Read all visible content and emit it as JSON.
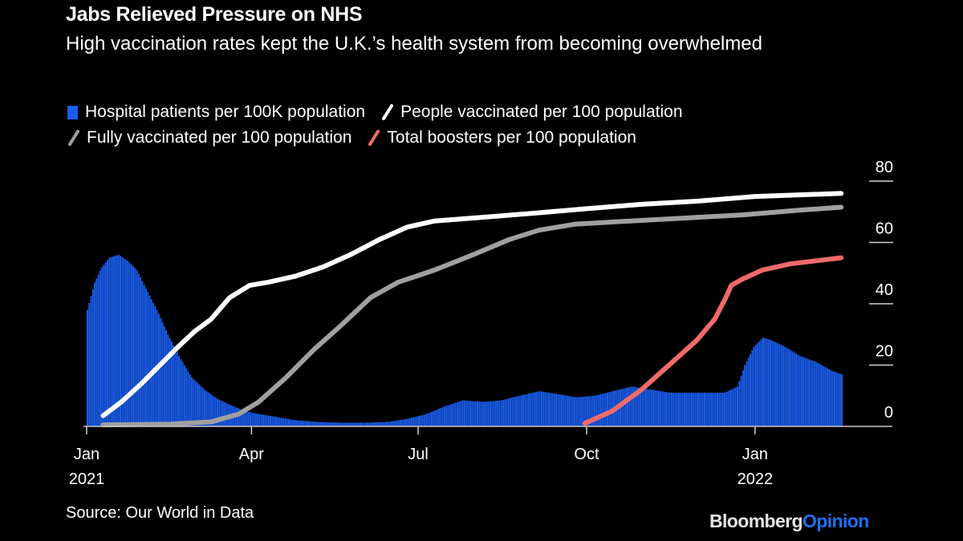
{
  "header": {
    "title": "Jabs Relieved Pressure on NHS",
    "subtitle": "High vaccination rates kept the U.K.’s health system from becoming overwhelmed"
  },
  "footer": {
    "source": "Source: Our World in Data",
    "logo_primary": "Bloomberg",
    "logo_secondary": "Opinion"
  },
  "colors": {
    "background": "#000000",
    "hospital": "#1a5ef0",
    "people_vaccinated": "#ffffff",
    "fully_vaccinated": "#a0a0a0",
    "boosters": "#f06a6a",
    "logo_accent": "#1f6ff2"
  },
  "chart_data": {
    "type": "bar+line",
    "title": "Jabs Relieved Pressure on NHS",
    "subtitle": "High vaccination rates kept the U.K.’s health system from becoming overwhelmed",
    "xlabel": "",
    "ylabel": "",
    "x_range": [
      "2021-01-01",
      "2022-02-20"
    ],
    "ylim": [
      0,
      80
    ],
    "y_axis_side": "right",
    "y_ticks": [
      0,
      20,
      40,
      60,
      80
    ],
    "x_ticks": [
      {
        "date": "2021-01-01",
        "label": "Jan",
        "sublabel": "2021"
      },
      {
        "date": "2021-04-01",
        "label": "Apr",
        "sublabel": ""
      },
      {
        "date": "2021-07-01",
        "label": "Jul",
        "sublabel": ""
      },
      {
        "date": "2021-10-01",
        "label": "Oct",
        "sublabel": ""
      },
      {
        "date": "2022-01-01",
        "label": "Jan",
        "sublabel": "2022"
      }
    ],
    "legend": [
      {
        "name": "Hospital patients per 100K population",
        "kind": "bar",
        "color": "#1a5ef0"
      },
      {
        "name": "People vaccinated per 100 population",
        "kind": "line",
        "color": "#ffffff"
      },
      {
        "name": "Fully vaccinated per 100 population",
        "kind": "line",
        "color": "#a0a0a0"
      },
      {
        "name": "Total boosters per 100 population",
        "kind": "line",
        "color": "#f06a6a"
      }
    ],
    "series": [
      {
        "name": "Hospital patients per 100K population",
        "kind": "bar",
        "color": "#1a5ef0",
        "points": [
          [
            "2021-01-01",
            38
          ],
          [
            "2021-01-05",
            47
          ],
          [
            "2021-01-09",
            52
          ],
          [
            "2021-01-13",
            55
          ],
          [
            "2021-01-18",
            56
          ],
          [
            "2021-01-23",
            54
          ],
          [
            "2021-01-28",
            51
          ],
          [
            "2021-02-02",
            45
          ],
          [
            "2021-02-08",
            38
          ],
          [
            "2021-02-14",
            30
          ],
          [
            "2021-02-20",
            23
          ],
          [
            "2021-02-27",
            16
          ],
          [
            "2021-03-06",
            12
          ],
          [
            "2021-03-13",
            9
          ],
          [
            "2021-03-20",
            7
          ],
          [
            "2021-03-28",
            5
          ],
          [
            "2021-04-05",
            4
          ],
          [
            "2021-04-15",
            3
          ],
          [
            "2021-04-25",
            2
          ],
          [
            "2021-05-05",
            1.5
          ],
          [
            "2021-05-20",
            1.2
          ],
          [
            "2021-06-01",
            1.2
          ],
          [
            "2021-06-15",
            1.5
          ],
          [
            "2021-06-25",
            2.5
          ],
          [
            "2021-07-05",
            4
          ],
          [
            "2021-07-15",
            6.5
          ],
          [
            "2021-07-25",
            8.5
          ],
          [
            "2021-08-05",
            8
          ],
          [
            "2021-08-15",
            8.5
          ],
          [
            "2021-08-25",
            10
          ],
          [
            "2021-09-05",
            11.5
          ],
          [
            "2021-09-15",
            10.5
          ],
          [
            "2021-09-25",
            9.5
          ],
          [
            "2021-10-05",
            10
          ],
          [
            "2021-10-15",
            11.5
          ],
          [
            "2021-10-25",
            13
          ],
          [
            "2021-11-05",
            12
          ],
          [
            "2021-11-15",
            11
          ],
          [
            "2021-11-25",
            11
          ],
          [
            "2021-12-05",
            11
          ],
          [
            "2021-12-15",
            11
          ],
          [
            "2021-12-22",
            13
          ],
          [
            "2021-12-26",
            20
          ],
          [
            "2021-12-31",
            26
          ],
          [
            "2022-01-05",
            29
          ],
          [
            "2022-01-10",
            28
          ],
          [
            "2022-01-17",
            26
          ],
          [
            "2022-01-25",
            23
          ],
          [
            "2022-02-03",
            21
          ],
          [
            "2022-02-12",
            18
          ],
          [
            "2022-02-17",
            17
          ]
        ]
      },
      {
        "name": "People vaccinated per 100 population",
        "kind": "line",
        "color": "#ffffff",
        "points": [
          [
            "2021-01-10",
            3.5
          ],
          [
            "2021-01-20",
            8
          ],
          [
            "2021-01-31",
            14
          ],
          [
            "2021-02-10",
            20
          ],
          [
            "2021-02-20",
            26
          ],
          [
            "2021-03-01",
            31
          ],
          [
            "2021-03-10",
            35
          ],
          [
            "2021-03-20",
            42
          ],
          [
            "2021-03-31",
            46
          ],
          [
            "2021-04-10",
            47
          ],
          [
            "2021-04-25",
            49
          ],
          [
            "2021-05-10",
            52
          ],
          [
            "2021-05-25",
            56
          ],
          [
            "2021-06-10",
            61
          ],
          [
            "2021-06-25",
            65
          ],
          [
            "2021-07-10",
            67
          ],
          [
            "2021-08-01",
            68
          ],
          [
            "2021-09-01",
            69.5
          ],
          [
            "2021-10-01",
            71
          ],
          [
            "2021-11-01",
            72.5
          ],
          [
            "2021-12-01",
            73.5
          ],
          [
            "2022-01-01",
            75
          ],
          [
            "2022-02-17",
            76
          ]
        ]
      },
      {
        "name": "Fully vaccinated per 100 population",
        "kind": "line",
        "color": "#a0a0a0",
        "points": [
          [
            "2021-01-10",
            0.5
          ],
          [
            "2021-02-15",
            0.7
          ],
          [
            "2021-03-10",
            1.5
          ],
          [
            "2021-03-25",
            4
          ],
          [
            "2021-04-05",
            8
          ],
          [
            "2021-04-20",
            16
          ],
          [
            "2021-05-05",
            25
          ],
          [
            "2021-05-20",
            33
          ],
          [
            "2021-06-05",
            42
          ],
          [
            "2021-06-20",
            47
          ],
          [
            "2021-07-10",
            51
          ],
          [
            "2021-07-31",
            56
          ],
          [
            "2021-08-20",
            61
          ],
          [
            "2021-09-05",
            64
          ],
          [
            "2021-09-25",
            66
          ],
          [
            "2021-10-25",
            67
          ],
          [
            "2021-11-25",
            68
          ],
          [
            "2021-12-25",
            69
          ],
          [
            "2022-01-25",
            70.5
          ],
          [
            "2022-02-17",
            71.5
          ]
        ]
      },
      {
        "name": "Total boosters per 100 population",
        "kind": "line",
        "color": "#f06a6a",
        "points": [
          [
            "2021-09-30",
            1
          ],
          [
            "2021-10-15",
            5
          ],
          [
            "2021-10-31",
            12
          ],
          [
            "2021-11-15",
            20
          ],
          [
            "2021-11-30",
            28
          ],
          [
            "2021-12-10",
            35
          ],
          [
            "2021-12-16",
            42
          ],
          [
            "2021-12-19",
            46
          ],
          [
            "2021-12-25",
            48
          ],
          [
            "2022-01-05",
            51
          ],
          [
            "2022-01-20",
            53
          ],
          [
            "2022-02-17",
            55
          ]
        ]
      }
    ]
  }
}
